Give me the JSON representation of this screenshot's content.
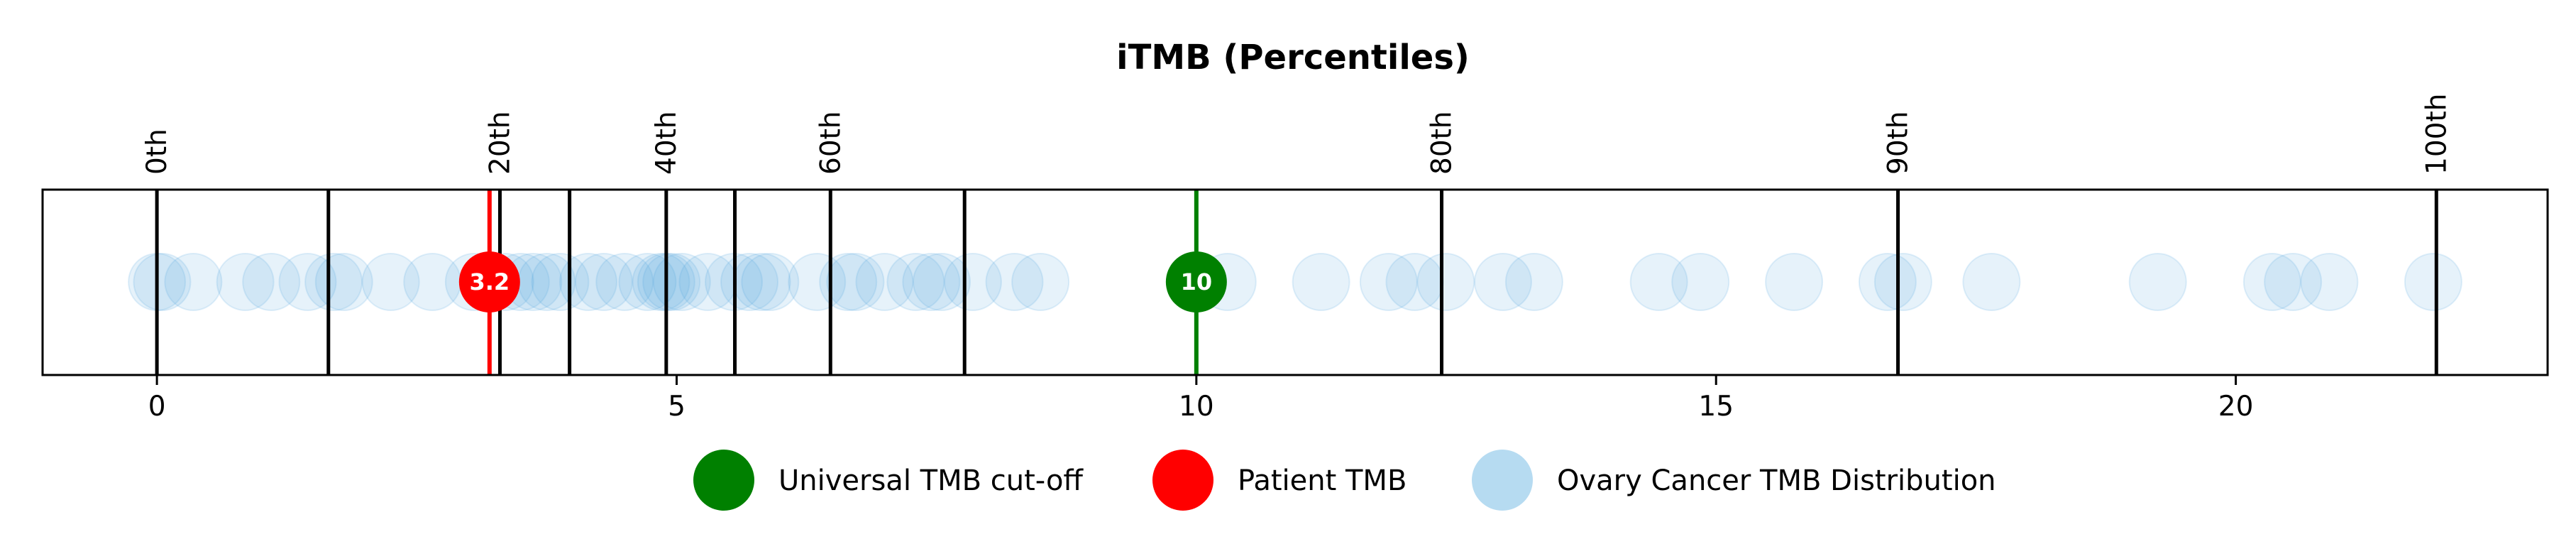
{
  "chart_data": {
    "type": "scatter",
    "title": "iTMB (Percentiles)",
    "xlabel": "",
    "ylabel": "",
    "xlim": [
      -1.1,
      23.0
    ],
    "grid": false,
    "x_ticks": [
      0,
      5,
      10,
      15,
      20
    ],
    "x_tick_labels": [
      "0",
      "5",
      "10",
      "15",
      "20"
    ],
    "percentile_lines": [
      {
        "x": 0.0,
        "label": "0th"
      },
      {
        "x": 1.65,
        "label": ""
      },
      {
        "x": 3.3,
        "label": "20th"
      },
      {
        "x": 3.97,
        "label": ""
      },
      {
        "x": 4.9,
        "label": "40th"
      },
      {
        "x": 5.56,
        "label": ""
      },
      {
        "x": 6.48,
        "label": "60th"
      },
      {
        "x": 7.77,
        "label": ""
      },
      {
        "x": 12.36,
        "label": "80th"
      },
      {
        "x": 16.75,
        "label": "90th"
      },
      {
        "x": 21.93,
        "label": "100th"
      }
    ],
    "series": [
      {
        "name": "Ovary Cancer TMB Distribution",
        "color": "#4ca3dd",
        "values": [
          0.0,
          0.05,
          0.35,
          0.85,
          1.1,
          1.45,
          1.7,
          1.8,
          2.25,
          2.65,
          3.05,
          3.35,
          3.5,
          3.62,
          3.75,
          3.88,
          4.15,
          4.3,
          4.5,
          4.72,
          4.85,
          4.9,
          4.95,
          5.05,
          5.3,
          5.55,
          5.7,
          5.82,
          5.9,
          6.35,
          6.65,
          6.72,
          7.0,
          7.3,
          7.45,
          7.55,
          7.85,
          8.25,
          8.5,
          10.3,
          11.2,
          11.85,
          12.1,
          12.4,
          12.95,
          13.25,
          14.45,
          14.85,
          15.75,
          16.65,
          16.8,
          17.65,
          19.25,
          20.35,
          20.55,
          20.9,
          21.9
        ]
      },
      {
        "name": "Patient TMB",
        "color": "#ff0000",
        "values": [
          3.2
        ]
      },
      {
        "name": "Universal TMB cut-off",
        "color": "#008000",
        "values": [
          10
        ]
      }
    ],
    "markers": [
      {
        "name": "Patient TMB",
        "x": 3.2,
        "label": "3.2",
        "color": "#ff0000"
      },
      {
        "name": "Universal TMB cut-off",
        "x": 10,
        "label": "10",
        "color": "#008000"
      }
    ],
    "legend": {
      "placement": "bottom-center",
      "entries": [
        {
          "label": "Universal TMB cut-off",
          "color": "#008000"
        },
        {
          "label": "Patient TMB",
          "color": "#ff0000"
        },
        {
          "label": "Ovary Cancer TMB Distribution",
          "color": "#b6dbf1"
        }
      ]
    }
  }
}
